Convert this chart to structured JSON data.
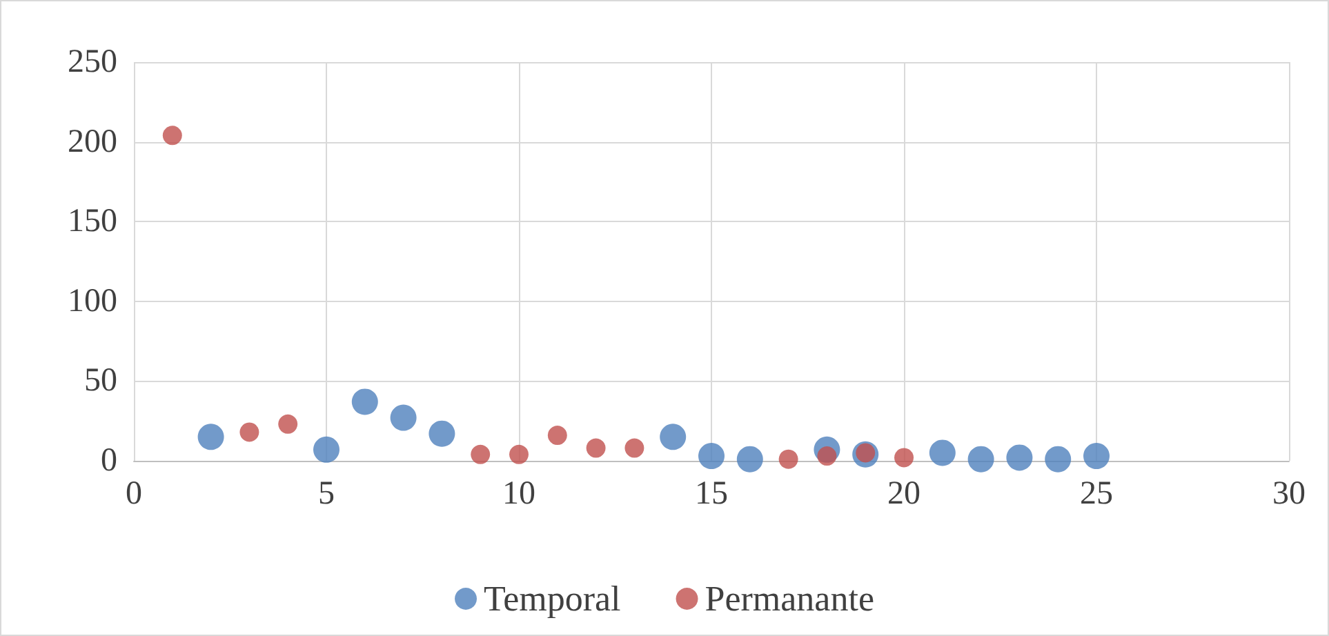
{
  "chart_data": {
    "type": "scatter",
    "xlim": [
      0,
      30
    ],
    "xticks": [
      0,
      5,
      10,
      15,
      20,
      25,
      30
    ],
    "ylim": [
      0,
      250
    ],
    "yticks": [
      0,
      50,
      100,
      150,
      200,
      250
    ],
    "grid": true,
    "legend": "bottom",
    "marker": "circle",
    "series": [
      {
        "name": "Temporal",
        "color": "#4f81bd",
        "x": [
          2,
          5,
          6,
          7,
          8,
          14,
          15,
          16,
          18,
          19,
          21,
          22,
          23,
          24,
          25
        ],
        "values": [
          15,
          7,
          37,
          27,
          17,
          15,
          3,
          1,
          7,
          4,
          5,
          1,
          2,
          1,
          3
        ]
      },
      {
        "name": "Permanante",
        "color": "#c0504d",
        "x": [
          1,
          3,
          4,
          9,
          10,
          11,
          12,
          13,
          17,
          18,
          19,
          20
        ],
        "values": [
          204,
          18,
          23,
          4,
          4,
          16,
          8,
          8,
          1,
          3,
          5,
          2
        ]
      }
    ]
  }
}
